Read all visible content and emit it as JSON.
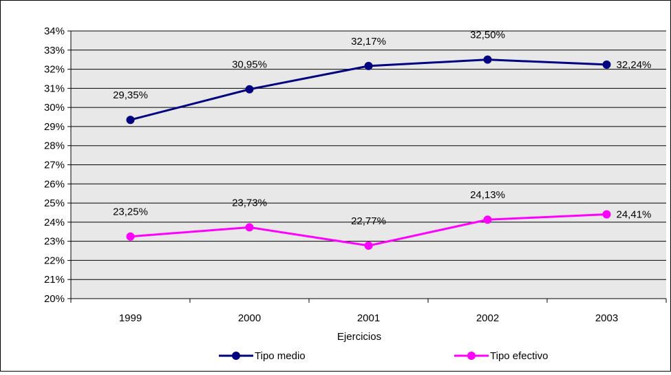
{
  "chart_data": {
    "type": "line",
    "categories": [
      "1999",
      "2000",
      "2001",
      "2002",
      "2003"
    ],
    "series": [
      {
        "name": "Tipo medio",
        "values": [
          29.35,
          30.95,
          32.17,
          32.5,
          32.24
        ],
        "labels": [
          "29,35%",
          "30,95%",
          "32,17%",
          "32,50%",
          "32,24%"
        ],
        "color": "#000080"
      },
      {
        "name": "Tipo efectivo",
        "values": [
          23.25,
          23.73,
          22.77,
          24.13,
          24.41
        ],
        "labels": [
          "23,25%",
          "23,73%",
          "22,77%",
          "24,13%",
          "24,41%"
        ],
        "color": "#FF00FF"
      }
    ],
    "title": "",
    "xlabel": "Ejercicios",
    "ylabel": "",
    "ylim": [
      20,
      34
    ],
    "yticks": [
      "20%",
      "21%",
      "22%",
      "23%",
      "24%",
      "25%",
      "26%",
      "27%",
      "28%",
      "29%",
      "30%",
      "31%",
      "32%",
      "33%",
      "34%"
    ],
    "grid": true,
    "legend": "bottom",
    "plot_background": "#E8E8E8",
    "frame_color": "#000000"
  }
}
